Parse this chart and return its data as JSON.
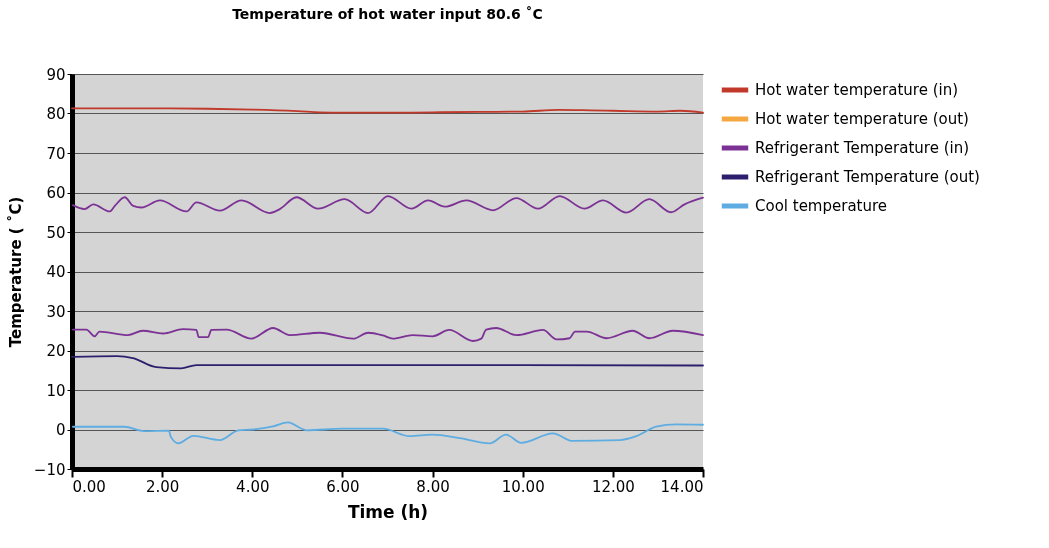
{
  "chart_data": {
    "type": "line",
    "title": "Temperature of hot water input 80.6 ˚C",
    "xlabel": "Time (h)",
    "ylabel": "Temperature ( ˚C)",
    "xlim": [
      0,
      14
    ],
    "xticks": [
      {
        "value": 0,
        "label": "0.00"
      },
      {
        "value": 2,
        "label": "2.00"
      },
      {
        "value": 4,
        "label": "4.00"
      },
      {
        "value": 6,
        "label": "6.00"
      },
      {
        "value": 8,
        "label": "8.00"
      },
      {
        "value": 10,
        "label": "10.00"
      },
      {
        "value": 12,
        "label": "12.00"
      },
      {
        "value": 14,
        "label": "14.00"
      }
    ],
    "ylim": [
      -10,
      90
    ],
    "yticks": [
      -10,
      0,
      10,
      20,
      30,
      40,
      50,
      60,
      70,
      80,
      90
    ],
    "grid": "y",
    "legend": "right",
    "marker": "none",
    "line_style": "solid",
    "series": [
      {
        "name": "Hot water temperature (in)",
        "color": "#c0392b",
        "x": [
          0,
          1,
          2,
          3,
          4,
          5,
          5.5,
          6,
          7,
          8,
          9,
          10,
          10.8,
          11.5,
          12,
          13,
          13.5,
          14
        ],
        "values": [
          81.3,
          81.3,
          81.3,
          81.2,
          81,
          80.6,
          80.3,
          80.2,
          80.2,
          80.3,
          80.4,
          80.5,
          80.9,
          80.8,
          80.7,
          80.5,
          80.7,
          80.2
        ]
      },
      {
        "name": "Hot water temperature (out)",
        "color": "#f5a742"
      },
      {
        "name": "Refrigerant Temperature (in)",
        "color": "#7b3294",
        "x": [
          0.02,
          0.28,
          0.47,
          0.84,
          0.95,
          1.17,
          1.36,
          1.54,
          1.95,
          2.54,
          2.76,
          3.28,
          3.76,
          4.39,
          4.61,
          4.98,
          5.46,
          6.05,
          6.57,
          7.01,
          7.53,
          7.9,
          8.27,
          8.75,
          9.34,
          9.86,
          10.34,
          10.82,
          11.37,
          11.78,
          12.3,
          12.81,
          13.29,
          13.59,
          14.0
        ],
        "values": [
          56.8,
          55.8,
          57.0,
          55.2,
          56.6,
          58.8,
          56.6,
          56.2,
          58.0,
          55.2,
          57.5,
          55.4,
          58.0,
          54.8,
          55.8,
          58.8,
          55.9,
          58.3,
          54.8,
          59.1,
          55.9,
          58.0,
          56.4,
          58.0,
          55.5,
          58.6,
          55.9,
          59.1,
          55.9,
          58.0,
          54.9,
          58.3,
          55.0,
          57.0,
          58.7
        ]
      },
      {
        "color": "#7b3294",
        "x": [
          0.02,
          0.32,
          0.5,
          0.61,
          1.24,
          1.57,
          2.02,
          2.46,
          2.76,
          2.81,
          3.02,
          3.09,
          3.43,
          3.98,
          4.46,
          4.83,
          5.5,
          6.24,
          6.57,
          6.9,
          7.12,
          7.56,
          8.0,
          8.37,
          8.9,
          9.08,
          9.19,
          9.41,
          9.86,
          10.45,
          10.75,
          11.04,
          11.16,
          11.42,
          11.86,
          12.44,
          12.81,
          13.33,
          14.0
        ],
        "values": [
          25.3,
          25.3,
          23.6,
          24.8,
          23.9,
          25.0,
          24.3,
          25.4,
          25.2,
          23.4,
          23.4,
          25.2,
          25.3,
          23.0,
          25.7,
          23.9,
          24.5,
          23.0,
          24.5,
          23.8,
          23.0,
          23.9,
          23.6,
          25.2,
          22.4,
          23.0,
          25.3,
          25.7,
          23.9,
          25.2,
          22.8,
          23.1,
          24.8,
          24.8,
          23.1,
          25.0,
          23.1,
          25.0,
          23.9
        ]
      },
      {
        "name": "Refrigerant Temperature (out)",
        "color": "#2e1f6e",
        "x": [
          0,
          1.0,
          1.35,
          1.87,
          2.42,
          2.76,
          6,
          10,
          14
        ],
        "values": [
          18.4,
          18.6,
          18.1,
          15.8,
          15.5,
          16.3,
          16.3,
          16.3,
          16.2
        ]
      },
      {
        "name": "Cool temperature",
        "color": "#5dade2",
        "x": [
          0.02,
          1.16,
          1.6,
          2.15,
          2.19,
          2.36,
          2.69,
          3.28,
          3.69,
          4.02,
          4.46,
          4.79,
          5.2,
          6.01,
          6.9,
          7.49,
          8.0,
          8.6,
          9.27,
          9.63,
          9.97,
          10.67,
          11.11,
          12.15,
          12.52,
          12.96,
          13.4,
          14.0
        ],
        "values": [
          0.7,
          0.7,
          -0.4,
          -0.3,
          -1.8,
          -3.5,
          -1.6,
          -2.7,
          -0.2,
          0,
          0.8,
          1.8,
          -0.2,
          0.2,
          0.2,
          -1.7,
          -1.3,
          -2.2,
          -3.5,
          -1.3,
          -3.4,
          -1.0,
          -2.9,
          -2.7,
          -1.7,
          0.7,
          1.3,
          1.2
        ]
      }
    ]
  }
}
